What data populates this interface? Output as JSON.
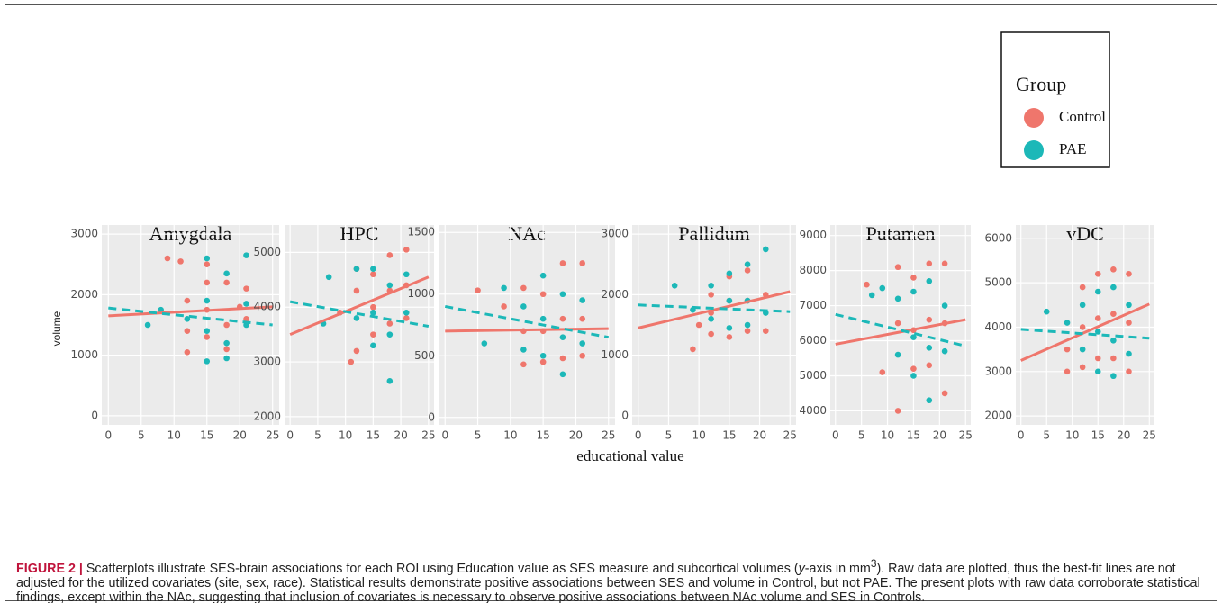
{
  "legend_title": "Group",
  "x_label": "educational value",
  "y_label": "volume",
  "caption": {
    "label": "FIGURE 2 |",
    "text1": " Scatterplots illustrate SES-brain associations for each ROI using Education value as SES measure and subcortical volumes (",
    "italic": "y",
    "text2": "-axis in mm",
    "sup": "3",
    "text3": "). Raw data are plotted, thus the best-fit lines are not adjusted for the utilized covariates (site, sex, race). Statistical results demonstrate positive associations between SES and volume in Control, but not PAE. The present plots with raw data corroborate statistical findings, except within the NAc, suggesting that inclusion of covariates is necessary to observe positive associations between NAc volume and SES in Controls."
  },
  "chart_data": [
    {
      "type": "scatter",
      "title": "Amygdala",
      "xlim": [
        -1,
        26
      ],
      "xticks": [
        0,
        5,
        10,
        15,
        20,
        25
      ],
      "ylim": [
        -150,
        3150
      ],
      "yticks": [
        0,
        1000,
        2000,
        3000
      ],
      "grid": true,
      "series": [
        {
          "name": "Control",
          "color": "#ef766c",
          "x": [
            9,
            11,
            12,
            12,
            12,
            15,
            15,
            15,
            15,
            18,
            18,
            18,
            20,
            21,
            21
          ],
          "values": [
            2600,
            2550,
            1900,
            1400,
            1050,
            2500,
            2200,
            1750,
            1300,
            2200,
            1500,
            1100,
            1800,
            2100,
            1600
          ],
          "line": {
            "x": [
              0,
              25
            ],
            "values": [
              1650,
              1800
            ]
          }
        },
        {
          "name": "PAE",
          "color": "#1cb8b8",
          "x": [
            6,
            8,
            12,
            15,
            15,
            15,
            15,
            18,
            18,
            18,
            21,
            21,
            21
          ],
          "values": [
            1500,
            1750,
            1600,
            2600,
            1900,
            1400,
            900,
            2350,
            1200,
            950,
            2650,
            1850,
            1500
          ],
          "line": {
            "x": [
              0,
              25
            ],
            "values": [
              1780,
              1500
            ]
          }
        }
      ]
    },
    {
      "type": "scatter",
      "title": "HPC",
      "xlim": [
        -1,
        26
      ],
      "xticks": [
        0,
        5,
        10,
        15,
        20,
        25
      ],
      "ylim": [
        1850,
        5500
      ],
      "yticks": [
        2000,
        3000,
        4000,
        5000
      ],
      "grid": true,
      "series": [
        {
          "name": "Control",
          "color": "#ef766c",
          "x": [
            9,
            11,
            12,
            12,
            12,
            15,
            15,
            15,
            18,
            18,
            18,
            21,
            21,
            21
          ],
          "values": [
            3900,
            3000,
            4700,
            4300,
            3200,
            4600,
            4000,
            3500,
            4950,
            4300,
            3700,
            5050,
            4400,
            3800
          ],
          "line": {
            "x": [
              0,
              25
            ],
            "values": [
              3500,
              4550
            ]
          }
        },
        {
          "name": "PAE",
          "color": "#1cb8b8",
          "x": [
            6,
            7,
            12,
            12,
            15,
            15,
            15,
            18,
            18,
            18,
            21,
            21
          ],
          "values": [
            3700,
            4550,
            4700,
            3800,
            4700,
            3900,
            3300,
            4400,
            3500,
            2650,
            4600,
            3900
          ],
          "line": {
            "x": [
              0,
              25
            ],
            "values": [
              4100,
              3650
            ]
          }
        }
      ]
    },
    {
      "type": "scatter",
      "title": "NAc",
      "xlim": [
        -1,
        26
      ],
      "xticks": [
        0,
        5,
        10,
        15,
        20,
        25
      ],
      "ylim": [
        -60,
        1560
      ],
      "yticks": [
        0,
        500,
        1000,
        1500
      ],
      "grid": true,
      "series": [
        {
          "name": "Control",
          "color": "#ef766c",
          "x": [
            5,
            9,
            12,
            12,
            12,
            15,
            15,
            15,
            18,
            18,
            18,
            21,
            21,
            21
          ],
          "values": [
            1030,
            900,
            1050,
            700,
            430,
            1000,
            700,
            450,
            1250,
            800,
            480,
            1250,
            800,
            500
          ],
          "line": {
            "x": [
              0,
              25
            ],
            "values": [
              700,
              720
            ]
          }
        },
        {
          "name": "PAE",
          "color": "#1cb8b8",
          "x": [
            6,
            9,
            12,
            12,
            15,
            15,
            15,
            18,
            18,
            18,
            21,
            21
          ],
          "values": [
            600,
            1050,
            900,
            550,
            1150,
            800,
            500,
            1000,
            650,
            350,
            950,
            600
          ],
          "line": {
            "x": [
              0,
              25
            ],
            "values": [
              900,
              650
            ]
          }
        }
      ]
    },
    {
      "type": "scatter",
      "title": "Pallidum",
      "xlim": [
        -1,
        26
      ],
      "xticks": [
        0,
        5,
        10,
        15,
        20,
        25
      ],
      "ylim": [
        -150,
        3150
      ],
      "yticks": [
        0,
        1000,
        2000,
        3000
      ],
      "grid": true,
      "series": [
        {
          "name": "Control",
          "color": "#ef766c",
          "x": [
            9,
            10,
            12,
            12,
            12,
            15,
            15,
            15,
            18,
            18,
            18,
            21,
            21
          ],
          "values": [
            1100,
            1500,
            2000,
            1700,
            1350,
            2300,
            1900,
            1300,
            2400,
            1900,
            1400,
            2000,
            1400
          ],
          "line": {
            "x": [
              0,
              25
            ],
            "values": [
              1450,
              2050
            ]
          }
        },
        {
          "name": "PAE",
          "color": "#1cb8b8",
          "x": [
            6,
            9,
            12,
            12,
            15,
            15,
            15,
            18,
            18,
            18,
            21,
            21
          ],
          "values": [
            2150,
            1750,
            2150,
            1600,
            2350,
            1900,
            1450,
            2500,
            1900,
            1500,
            2750,
            1700
          ],
          "line": {
            "x": [
              0,
              25
            ],
            "values": [
              1830,
              1720
            ]
          }
        }
      ]
    },
    {
      "type": "scatter",
      "title": "Putamen",
      "xlim": [
        -1,
        26
      ],
      "xticks": [
        0,
        5,
        10,
        15,
        20,
        25
      ],
      "ylim": [
        3600,
        9300
      ],
      "yticks": [
        4000,
        5000,
        6000,
        7000,
        8000,
        9000
      ],
      "grid": true,
      "series": [
        {
          "name": "Control",
          "color": "#ef766c",
          "x": [
            6,
            9,
            12,
            12,
            12,
            15,
            15,
            15,
            18,
            18,
            18,
            21,
            21,
            21
          ],
          "values": [
            7600,
            5100,
            8100,
            6500,
            4000,
            7800,
            6300,
            5200,
            8200,
            6600,
            5300,
            8200,
            6500,
            4500
          ],
          "line": {
            "x": [
              0,
              25
            ],
            "values": [
              5900,
              6600
            ]
          }
        },
        {
          "name": "PAE",
          "color": "#1cb8b8",
          "x": [
            7,
            9,
            12,
            12,
            15,
            15,
            15,
            18,
            18,
            18,
            21,
            21
          ],
          "values": [
            7300,
            7500,
            7200,
            5600,
            7400,
            6100,
            5000,
            7700,
            5800,
            4300,
            7000,
            5700
          ],
          "line": {
            "x": [
              0,
              25
            ],
            "values": [
              6750,
              5850
            ]
          }
        }
      ]
    },
    {
      "type": "scatter",
      "title": "vDC",
      "xlim": [
        -1,
        26
      ],
      "xticks": [
        0,
        5,
        10,
        15,
        20,
        25
      ],
      "ylim": [
        1800,
        6300
      ],
      "yticks": [
        2000,
        3000,
        4000,
        5000,
        6000
      ],
      "grid": true,
      "series": [
        {
          "name": "Control",
          "color": "#ef766c",
          "x": [
            9,
            9,
            12,
            12,
            12,
            15,
            15,
            15,
            18,
            18,
            18,
            21,
            21,
            21
          ],
          "values": [
            3500,
            3000,
            4900,
            4000,
            3100,
            5200,
            4200,
            3300,
            5300,
            4300,
            3300,
            5200,
            4100,
            3000
          ],
          "line": {
            "x": [
              0,
              25
            ],
            "values": [
              3250,
              4520
            ]
          }
        },
        {
          "name": "PAE",
          "color": "#1cb8b8",
          "x": [
            5,
            9,
            12,
            12,
            15,
            15,
            15,
            18,
            18,
            18,
            21,
            21
          ],
          "values": [
            4350,
            4100,
            4500,
            3500,
            4800,
            3900,
            3000,
            4900,
            3700,
            2900,
            4500,
            3400
          ],
          "line": {
            "x": [
              0,
              25
            ],
            "values": [
              3950,
              3750
            ]
          }
        }
      ]
    }
  ]
}
